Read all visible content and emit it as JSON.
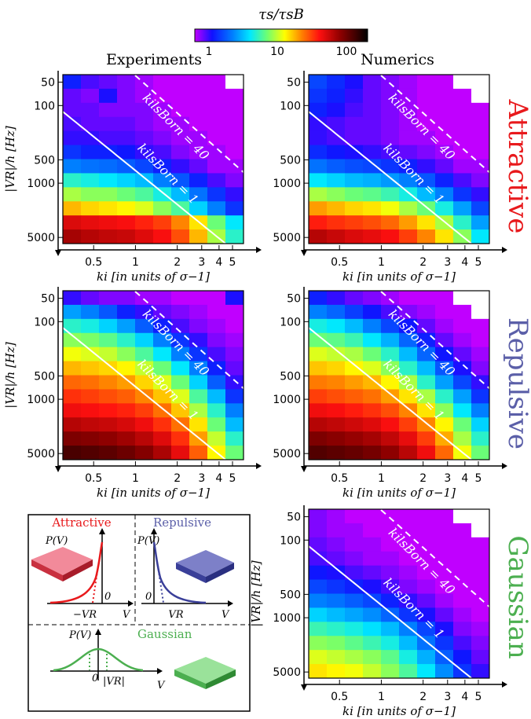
{
  "colorbar": {
    "label": "τs/τsB",
    "ticks": [
      "1",
      "10",
      "100"
    ]
  },
  "headers": {
    "experiments": "Experiments",
    "numerics": "Numerics"
  },
  "rows": {
    "attractive": {
      "label": "Attractive",
      "color": "#e8191c"
    },
    "repulsive": {
      "label": "Repulsive",
      "color": "#5b5fa8"
    },
    "gaussian": {
      "label": "Gaussian",
      "color": "#4caf50"
    }
  },
  "axes": {
    "xlabel": "ki [in units of σ−1]",
    "ylabel": "|VR|/h [Hz]",
    "xticks": [
      "0.5",
      "1",
      "2",
      "3",
      "4",
      "5"
    ],
    "yticks": [
      "50",
      "100",
      "500",
      "1000",
      "5000"
    ]
  },
  "annotations": {
    "born40": "kilsBorn = 40",
    "born1": "kilsBorn = 1"
  },
  "legend": {
    "attractive": {
      "title": "Attractive",
      "pv": "P(V)",
      "zero": "0",
      "v": "V",
      "vr": "−VR"
    },
    "repulsive": {
      "title": "Repulsive",
      "pv": "P(V)",
      "zero": "0",
      "v": "V",
      "vr": "VR"
    },
    "gaussian": {
      "title": "Gaussian",
      "pv": "P(V)",
      "zero": "0",
      "v": "V",
      "vr": "|VR|"
    }
  },
  "chart_data": [
    {
      "type": "heatmap",
      "panel": "Experiments / Attractive",
      "x_range": [
        0.3,
        6
      ],
      "y_range": [
        40,
        6000
      ],
      "x_scale": "log",
      "y_scale": "log",
      "color_scale": "log",
      "color_range": [
        1,
        150
      ],
      "values": [
        [
          1.8,
          1.4,
          1.3,
          1.2,
          1.1,
          1.0,
          1.0,
          1.0,
          1.0,
          null
        ],
        [
          1.3,
          1.2,
          1.6,
          1.2,
          1.1,
          1.0,
          1.0,
          1.0,
          1.0,
          1.0
        ],
        [
          1.3,
          1.3,
          1.2,
          1.2,
          1.2,
          1.1,
          1.0,
          1.0,
          1.0,
          1.0
        ],
        [
          1.4,
          1.3,
          1.3,
          1.3,
          1.2,
          1.1,
          1.1,
          1.0,
          1.0,
          1.0
        ],
        [
          1.5,
          1.5,
          1.4,
          1.4,
          1.3,
          1.2,
          1.1,
          1.1,
          1.0,
          1.0
        ],
        [
          2.0,
          1.8,
          1.8,
          1.7,
          1.5,
          1.4,
          1.2,
          1.1,
          1.1,
          1.0
        ],
        [
          3.0,
          2.8,
          2.7,
          2.5,
          2.2,
          1.8,
          1.5,
          1.3,
          1.1,
          1.1
        ],
        [
          6,
          5.5,
          5,
          4.5,
          4,
          3,
          2.4,
          1.8,
          1.4,
          1.2
        ],
        [
          10,
          9,
          9,
          8,
          7,
          5.5,
          4,
          2.8,
          2,
          1.5
        ],
        [
          18,
          16,
          15,
          14,
          12,
          9,
          7,
          4.5,
          3,
          2
        ],
        [
          45,
          42,
          40,
          38,
          34,
          30,
          22,
          15,
          8,
          5
        ],
        [
          60,
          55,
          52,
          50,
          44,
          38,
          28,
          18,
          10,
          6
        ]
      ]
    },
    {
      "type": "heatmap",
      "panel": "Numerics / Attractive",
      "x_range": [
        0.3,
        6
      ],
      "y_range": [
        40,
        6000
      ],
      "x_scale": "log",
      "y_scale": "log",
      "color_scale": "log",
      "color_range": [
        1,
        150
      ],
      "values": [
        [
          2.2,
          1.9,
          1.6,
          1.3,
          1.2,
          1.1,
          1.0,
          1.0,
          null,
          null
        ],
        [
          2.0,
          1.8,
          1.5,
          1.3,
          1.2,
          1.1,
          1.0,
          1.0,
          1.0,
          null
        ],
        [
          1.8,
          1.6,
          1.4,
          1.3,
          1.2,
          1.1,
          1.0,
          1.0,
          1.0,
          1.0
        ],
        [
          1.5,
          1.4,
          1.3,
          1.3,
          1.2,
          1.1,
          1.0,
          1.0,
          1.0,
          1.0
        ],
        [
          1.5,
          1.4,
          1.3,
          1.3,
          1.2,
          1.1,
          1.1,
          1.0,
          1.0,
          1.0
        ],
        [
          1.9,
          1.7,
          1.6,
          1.5,
          1.4,
          1.3,
          1.2,
          1.1,
          1.0,
          1.0
        ],
        [
          2.8,
          2.5,
          2.3,
          2.2,
          2.0,
          1.8,
          1.5,
          1.3,
          1.1,
          1.1
        ],
        [
          5,
          4.5,
          4,
          3.8,
          3.4,
          3,
          2.4,
          1.8,
          1.4,
          1.2
        ],
        [
          10,
          9,
          8,
          7.5,
          6.5,
          5.5,
          4,
          3,
          2,
          1.5
        ],
        [
          20,
          18,
          16,
          15,
          13,
          10,
          8,
          5.5,
          3.5,
          2.2
        ],
        [
          35,
          32,
          30,
          28,
          25,
          20,
          15,
          10,
          6,
          3.5
        ],
        [
          55,
          50,
          45,
          42,
          38,
          30,
          22,
          15,
          9,
          5
        ]
      ]
    },
    {
      "type": "heatmap",
      "panel": "Experiments / Repulsive",
      "x_range": [
        0.3,
        6
      ],
      "y_range": [
        40,
        6000
      ],
      "x_scale": "log",
      "y_scale": "log",
      "color_scale": "log",
      "color_range": [
        1,
        150
      ],
      "values": [
        [
          1.5,
          1.3,
          1.2,
          1.2,
          1.1,
          1.1,
          1.0,
          1.0,
          1.0,
          1.6
        ],
        [
          3.5,
          3,
          2.4,
          1.8,
          1.5,
          1.3,
          1.2,
          1.1,
          1.0,
          1.0
        ],
        [
          6,
          5.5,
          4.5,
          3.5,
          2.5,
          1.8,
          1.4,
          1.2,
          1.1,
          1.0
        ],
        [
          9,
          8.5,
          7.5,
          6,
          4.5,
          3,
          2,
          1.5,
          1.2,
          1.1
        ],
        [
          13,
          12,
          11,
          9,
          7,
          5,
          3,
          2,
          1.4,
          1.2
        ],
        [
          18,
          17,
          16,
          14,
          11,
          8,
          5,
          3,
          1.8,
          1.3
        ],
        [
          25,
          24,
          22,
          20,
          16,
          12,
          8,
          4.5,
          2.5,
          1.5
        ],
        [
          32,
          30,
          28,
          26,
          22,
          17,
          12,
          7,
          4,
          2
        ],
        [
          40,
          38,
          36,
          34,
          30,
          24,
          17,
          10,
          6,
          3
        ],
        [
          55,
          52,
          50,
          46,
          40,
          32,
          24,
          15,
          8,
          4
        ],
        [
          75,
          72,
          68,
          62,
          54,
          44,
          32,
          20,
          11,
          6
        ],
        [
          100,
          95,
          90,
          82,
          72,
          58,
          42,
          26,
          14,
          8
        ]
      ]
    },
    {
      "type": "heatmap",
      "panel": "Numerics / Repulsive",
      "x_range": [
        0.3,
        6
      ],
      "y_range": [
        40,
        6000
      ],
      "x_scale": "log",
      "y_scale": "log",
      "color_scale": "log",
      "color_range": [
        1,
        150
      ],
      "values": [
        [
          1.8,
          1.5,
          1.3,
          1.2,
          1.1,
          1.0,
          1.0,
          1.0,
          null,
          null
        ],
        [
          3,
          2.6,
          2.1,
          1.7,
          1.4,
          1.2,
          1.1,
          1.0,
          1.0,
          null
        ],
        [
          5.5,
          5,
          4,
          3,
          2.2,
          1.7,
          1.3,
          1.1,
          1.0,
          1.0
        ],
        [
          8,
          7.5,
          6.5,
          5,
          3.8,
          2.6,
          1.8,
          1.3,
          1.1,
          1.0
        ],
        [
          12,
          11,
          10,
          8,
          6,
          4,
          2.6,
          1.7,
          1.3,
          1.1
        ],
        [
          17,
          16,
          14,
          12,
          9,
          6,
          4,
          2.4,
          1.6,
          1.2
        ],
        [
          23,
          22,
          20,
          18,
          14,
          10,
          6,
          3.5,
          2.2,
          1.5
        ],
        [
          30,
          28,
          26,
          24,
          20,
          15,
          10,
          6,
          3.5,
          2
        ],
        [
          40,
          38,
          35,
          32,
          28,
          22,
          15,
          9,
          5,
          3
        ],
        [
          55,
          52,
          48,
          44,
          38,
          30,
          22,
          14,
          8,
          4.5
        ],
        [
          75,
          70,
          65,
          60,
          52,
          42,
          30,
          19,
          10,
          6
        ],
        [
          95,
          90,
          85,
          78,
          68,
          54,
          40,
          25,
          13,
          8
        ]
      ]
    },
    {
      "type": "heatmap",
      "panel": "Numerics / Gaussian",
      "x_range": [
        0.3,
        6
      ],
      "y_range": [
        40,
        6000
      ],
      "x_scale": "log",
      "y_scale": "log",
      "color_scale": "log",
      "color_range": [
        1,
        150
      ],
      "values": [
        [
          1.2,
          1.1,
          1.0,
          1.0,
          1.0,
          1.0,
          1.0,
          1.0,
          null,
          null
        ],
        [
          1.2,
          1.1,
          1.1,
          1.0,
          1.0,
          1.0,
          1.0,
          1.0,
          1.0,
          null
        ],
        [
          1.3,
          1.2,
          1.1,
          1.1,
          1.0,
          1.0,
          1.0,
          1.0,
          1.0,
          1.0
        ],
        [
          1.4,
          1.3,
          1.2,
          1.1,
          1.1,
          1.0,
          1.0,
          1.0,
          1.0,
          1.0
        ],
        [
          1.7,
          1.6,
          1.4,
          1.3,
          1.2,
          1.1,
          1.0,
          1.0,
          1.0,
          1.0
        ],
        [
          2.2,
          2.0,
          1.8,
          1.6,
          1.4,
          1.2,
          1.1,
          1.0,
          1.0,
          1.0
        ],
        [
          3,
          2.8,
          2.5,
          2.2,
          1.8,
          1.5,
          1.3,
          1.1,
          1.0,
          1.0
        ],
        [
          4.5,
          4,
          3.6,
          3.2,
          2.6,
          2,
          1.6,
          1.3,
          1.1,
          1.0
        ],
        [
          6.5,
          6,
          5.5,
          4.8,
          4,
          3,
          2.2,
          1.6,
          1.2,
          1.1
        ],
        [
          9,
          8.5,
          7.5,
          6.5,
          5.5,
          4,
          2.8,
          2,
          1.4,
          1.2
        ],
        [
          12,
          11,
          10,
          9,
          7.5,
          5.5,
          3.8,
          2.5,
          1.7,
          1.3
        ],
        [
          15,
          14,
          13,
          11,
          9,
          7,
          5,
          3.2,
          2,
          1.5
        ]
      ]
    }
  ]
}
